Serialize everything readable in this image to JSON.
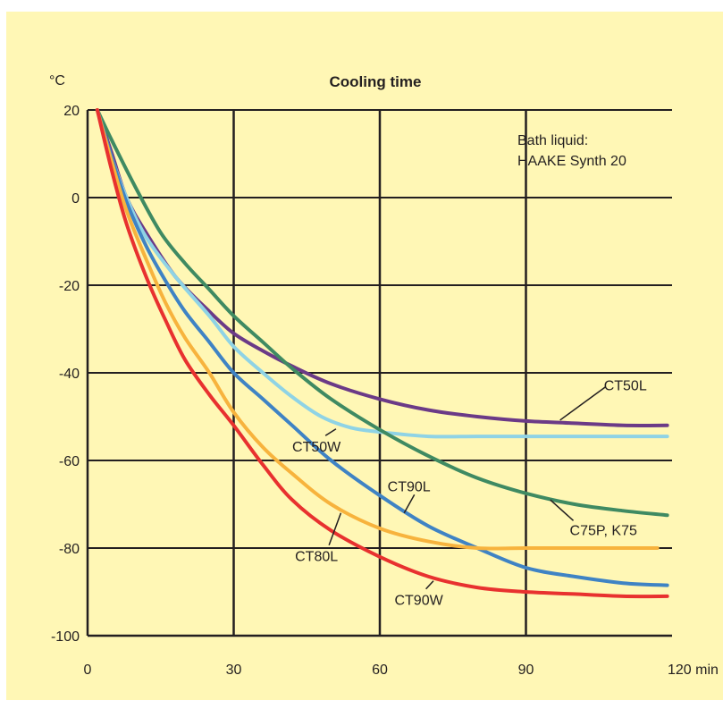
{
  "chart_data": {
    "type": "line",
    "title": "Cooling time",
    "ylabel": "°C",
    "xlabel": "",
    "x_unit": "min",
    "xlim": [
      0,
      120
    ],
    "ylim": [
      -100,
      20
    ],
    "x_ticks": [
      0,
      30,
      60,
      90,
      120
    ],
    "x_tick_labels": [
      "0",
      "30",
      "60",
      "90",
      "120 min"
    ],
    "y_ticks": [
      20,
      0,
      -20,
      -40,
      -60,
      -80,
      -100
    ],
    "y_tick_labels": [
      "20",
      "0",
      "-20",
      "-40",
      "-60",
      "-80",
      "-100"
    ],
    "grid": true,
    "annotation": [
      "Bath liquid:",
      "HAAKE Synth 20"
    ],
    "series": [
      {
        "name": "CT50L",
        "color": "#6b3a87",
        "points": [
          [
            2,
            20
          ],
          [
            5,
            10
          ],
          [
            8,
            0
          ],
          [
            12,
            -8
          ],
          [
            18,
            -18
          ],
          [
            25,
            -26
          ],
          [
            30,
            -31
          ],
          [
            36,
            -35
          ],
          [
            42,
            -38.5
          ],
          [
            50,
            -42.5
          ],
          [
            60,
            -46
          ],
          [
            70,
            -48.5
          ],
          [
            80,
            -50
          ],
          [
            90,
            -51
          ],
          [
            100,
            -51.5
          ],
          [
            110,
            -52
          ],
          [
            119,
            -52
          ]
        ]
      },
      {
        "name": "CT50W",
        "color": "#8fd3e5",
        "points": [
          [
            2,
            20
          ],
          [
            5,
            9
          ],
          [
            8,
            0
          ],
          [
            12,
            -9
          ],
          [
            18,
            -18
          ],
          [
            25,
            -27
          ],
          [
            30,
            -34
          ],
          [
            36,
            -40
          ],
          [
            42,
            -45.5
          ],
          [
            48,
            -50
          ],
          [
            54,
            -52.5
          ],
          [
            60,
            -53.5
          ],
          [
            70,
            -54.5
          ],
          [
            80,
            -54.5
          ],
          [
            90,
            -54.5
          ],
          [
            100,
            -54.5
          ],
          [
            110,
            -54.5
          ],
          [
            119,
            -54.5
          ]
        ]
      },
      {
        "name": "C75P, K75",
        "color": "#3f8a62",
        "points": [
          [
            2,
            20
          ],
          [
            5,
            13
          ],
          [
            10,
            2
          ],
          [
            15,
            -8
          ],
          [
            20,
            -15
          ],
          [
            25,
            -21
          ],
          [
            30,
            -27
          ],
          [
            36,
            -33
          ],
          [
            42,
            -39
          ],
          [
            50,
            -46
          ],
          [
            60,
            -53
          ],
          [
            70,
            -59
          ],
          [
            80,
            -64
          ],
          [
            90,
            -67.5
          ],
          [
            100,
            -70
          ],
          [
            110,
            -71.5
          ],
          [
            119,
            -72.5
          ]
        ]
      },
      {
        "name": "CT90L",
        "color": "#3f83c4",
        "points": [
          [
            2,
            20
          ],
          [
            5,
            9
          ],
          [
            8,
            -1
          ],
          [
            12,
            -11
          ],
          [
            16,
            -19
          ],
          [
            20,
            -26
          ],
          [
            25,
            -33
          ],
          [
            30,
            -40
          ],
          [
            36,
            -46
          ],
          [
            42,
            -52
          ],
          [
            50,
            -60
          ],
          [
            60,
            -68
          ],
          [
            70,
            -75
          ],
          [
            80,
            -80
          ],
          [
            90,
            -84.5
          ],
          [
            100,
            -86.5
          ],
          [
            110,
            -88
          ],
          [
            119,
            -88.5
          ]
        ]
      },
      {
        "name": "CT80L",
        "color": "#f7b33d",
        "points": [
          [
            2,
            20
          ],
          [
            5,
            8
          ],
          [
            8,
            -3
          ],
          [
            12,
            -14
          ],
          [
            16,
            -24
          ],
          [
            20,
            -32
          ],
          [
            25,
            -40
          ],
          [
            30,
            -49
          ],
          [
            36,
            -57
          ],
          [
            42,
            -63
          ],
          [
            50,
            -70
          ],
          [
            60,
            -75.5
          ],
          [
            70,
            -78.5
          ],
          [
            80,
            -80
          ],
          [
            90,
            -80
          ],
          [
            100,
            -80
          ],
          [
            110,
            -80
          ],
          [
            117,
            -80
          ]
        ]
      },
      {
        "name": "CT90W",
        "color": "#e8312f",
        "points": [
          [
            2,
            20
          ],
          [
            5,
            6
          ],
          [
            8,
            -6
          ],
          [
            12,
            -18
          ],
          [
            16,
            -28
          ],
          [
            20,
            -37
          ],
          [
            25,
            -45
          ],
          [
            30,
            -52
          ],
          [
            36,
            -61
          ],
          [
            42,
            -69
          ],
          [
            50,
            -76
          ],
          [
            60,
            -82
          ],
          [
            70,
            -86.5
          ],
          [
            80,
            -89
          ],
          [
            90,
            -90
          ],
          [
            100,
            -90.5
          ],
          [
            110,
            -91
          ],
          [
            119,
            -91
          ]
        ]
      }
    ],
    "series_labels": [
      {
        "series": "CT50L",
        "text": "CT50L",
        "at": [
          106,
          -44
        ],
        "leader_to": [
          97,
          -50.8
        ]
      },
      {
        "series": "CT50W",
        "text": "CT50W",
        "at": [
          47,
          -58
        ],
        "leader_to": [
          51,
          -52.8
        ]
      },
      {
        "series": "C75P, K75",
        "text": "C75P, K75",
        "at": [
          99,
          -77
        ],
        "leader_to": [
          95,
          -69
        ]
      },
      {
        "series": "CT90L",
        "text": "CT90L",
        "at": [
          66,
          -67
        ],
        "leader_to": [
          65,
          -72
        ]
      },
      {
        "series": "CT80L",
        "text": "CT80L",
        "at": [
          47,
          -83
        ],
        "leader_to": [
          52,
          -72
        ]
      },
      {
        "series": "CT90W",
        "text": "CT90W",
        "at": [
          68,
          -93
        ],
        "leader_to": [
          71,
          -87.5
        ]
      }
    ]
  }
}
